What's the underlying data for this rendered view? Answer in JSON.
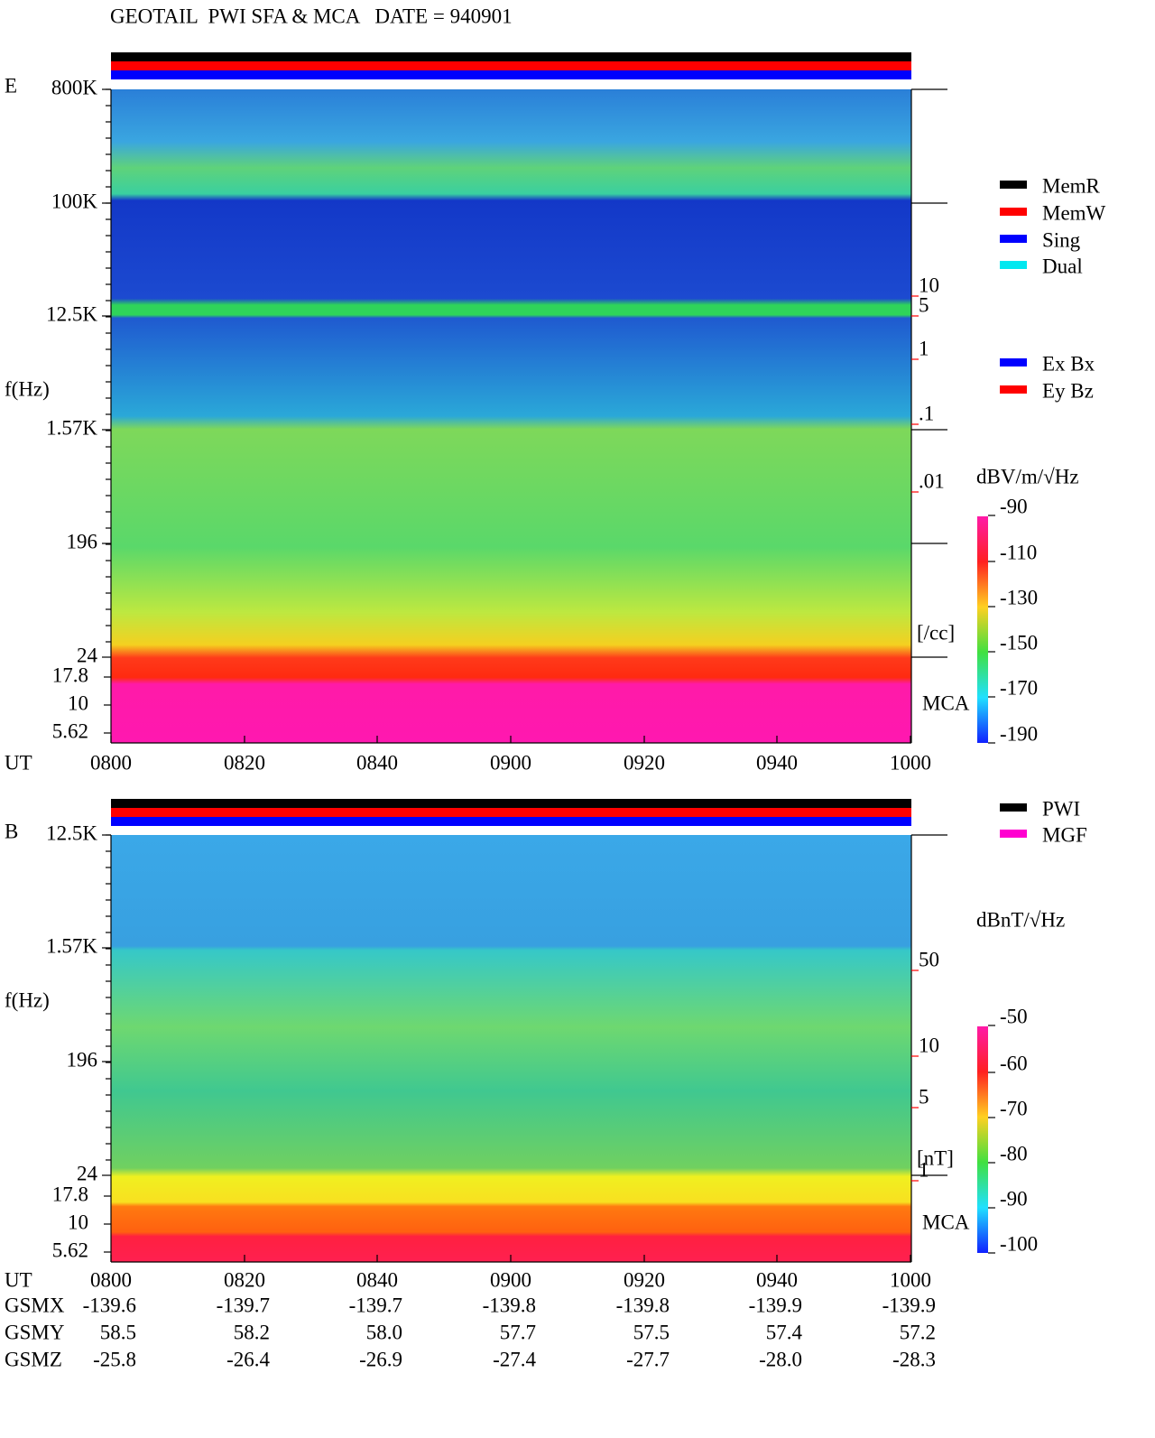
{
  "title": "GEOTAIL  PWI SFA & MCA   DATE = 940901",
  "time_axis": {
    "label": "UT",
    "ticks": [
      "0800",
      "0820",
      "0840",
      "0900",
      "0920",
      "0940",
      "1000"
    ]
  },
  "panels": [
    {
      "label": "E",
      "y_axis_label": "f(Hz)",
      "freq_ticks": [
        "800K",
        "100K",
        "12.5K",
        "1.57K",
        "196",
        "24"
      ],
      "mca_ticks": [
        "17.8",
        "10",
        "5.62"
      ],
      "mca_label": "MCA",
      "right_scale": [
        "10",
        "5",
        "1",
        ".1",
        ".01"
      ],
      "right_unit": "[/cc]",
      "status_legend": [
        "MemR",
        "MemW",
        "Sing",
        "Dual"
      ],
      "component_legend": [
        "Ex Bx",
        "Ey Bz"
      ],
      "colorbar_label": "dBV/m/√Hz",
      "colorbar_ticks": [
        "-90",
        "-110",
        "-130",
        "-150",
        "-170",
        "-190"
      ]
    },
    {
      "label": "B",
      "y_axis_label": "f(Hz)",
      "freq_ticks": [
        "12.5K",
        "1.57K",
        "196",
        "24"
      ],
      "mca_ticks": [
        "17.8",
        "10",
        "5.62"
      ],
      "mca_label": "MCA",
      "right_scale": [
        "50",
        "10",
        "5",
        "1"
      ],
      "right_unit": "[nT]",
      "status_legend": [
        "PWI",
        "MGF"
      ],
      "colorbar_label": "dBnT/√Hz",
      "colorbar_ticks": [
        "-50",
        "-60",
        "-70",
        "-80",
        "-90",
        "-100"
      ]
    }
  ],
  "orbit": [
    {
      "label": "GSMX",
      "values": [
        "-139.6",
        "-139.7",
        "-139.7",
        "-139.8",
        "-139.8",
        "-139.9",
        "-139.9"
      ]
    },
    {
      "label": "GSMY",
      "values": [
        "58.5",
        "58.2",
        "58.0",
        "57.7",
        "57.5",
        "57.4",
        "57.2"
      ]
    },
    {
      "label": "GSMZ",
      "values": [
        "-25.8",
        "-26.4",
        "-26.9",
        "-27.4",
        "-27.7",
        "-28.0",
        "-28.3"
      ]
    }
  ]
}
